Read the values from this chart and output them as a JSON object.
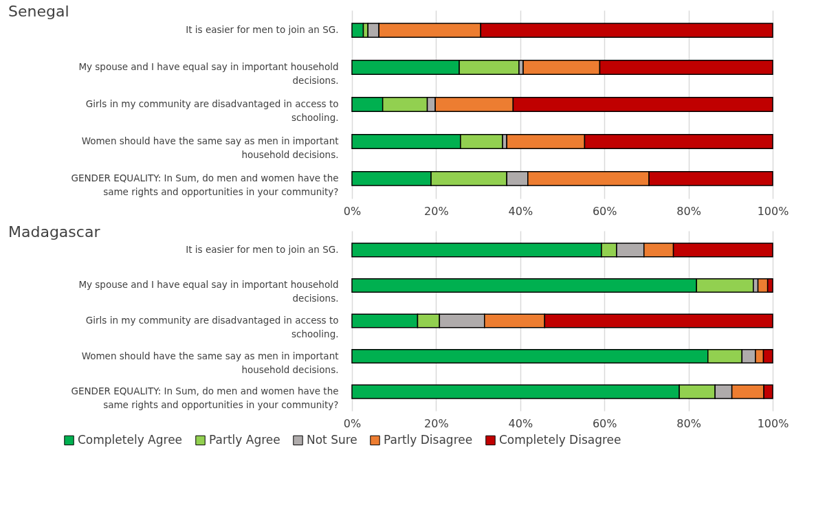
{
  "chart_data": [
    {
      "type": "bar",
      "title": "Senegal",
      "orientation": "horizontal",
      "stacked": true,
      "grid": "x",
      "legend": false,
      "categories": [
        "It is easier for men to join an SG.",
        "My spouse and I have equal say in important household decisions.",
        "Girls in my community are disadvantaged in access to schooling.",
        "Women should have the same say as men in important household decisions.",
        "GENDER EQUALITY: In Sum, do men and women have the same rights and opportunities in your community?"
      ],
      "xlim": [
        0,
        100
      ],
      "xticks": [
        {
          "value": 0,
          "label": "0%"
        },
        {
          "value": 20,
          "label": "20%"
        },
        {
          "value": 40,
          "label": "40%"
        },
        {
          "value": 60,
          "label": "60%"
        },
        {
          "value": 80,
          "label": "80%"
        },
        {
          "value": 100,
          "label": "100%"
        }
      ],
      "series": [
        {
          "color": "#00b050",
          "values": [
            2.7,
            25.5,
            7.3,
            25.8,
            18.8
          ]
        },
        {
          "color": "#92d050",
          "values": [
            1.1,
            14.2,
            10.6,
            10.0,
            18.0
          ]
        },
        {
          "color": "#afabab",
          "values": [
            2.6,
            1.0,
            1.9,
            1.0,
            5.0
          ]
        },
        {
          "color": "#ed7d31",
          "values": [
            24.2,
            18.2,
            18.5,
            18.5,
            28.8
          ]
        },
        {
          "color": "#c00000",
          "values": [
            69.4,
            41.1,
            61.7,
            44.7,
            29.4
          ]
        }
      ]
    },
    {
      "type": "bar",
      "title": "Madagascar",
      "orientation": "horizontal",
      "stacked": true,
      "grid": "x",
      "legend": "bottom",
      "categories": [
        "It is easier for men to join an SG.",
        "My spouse and I have equal say in important household decisions.",
        "Girls in my community are disadvantaged in access to schooling.",
        "Women should have the same say as men in important household decisions.",
        "GENDER EQUALITY: In Sum, do men and women have the same rights and opportunities in your community?"
      ],
      "xlim": [
        0,
        100
      ],
      "xticks": [
        {
          "value": 0,
          "label": "0%"
        },
        {
          "value": 20,
          "label": "20%"
        },
        {
          "value": 40,
          "label": "40%"
        },
        {
          "value": 60,
          "label": "60%"
        },
        {
          "value": 80,
          "label": "80%"
        },
        {
          "value": 100,
          "label": "100%"
        }
      ],
      "series": [
        {
          "name": "Completely Agree",
          "color": "#00b050",
          "values": [
            59.3,
            81.9,
            15.6,
            84.6,
            77.8
          ]
        },
        {
          "name": "Partly Agree",
          "color": "#92d050",
          "values": [
            3.6,
            13.5,
            5.2,
            8.1,
            8.5
          ]
        },
        {
          "name": "Not Sure",
          "color": "#afabab",
          "values": [
            6.5,
            1.1,
            10.7,
            3.2,
            4.0
          ]
        },
        {
          "name": "Partly Disagree",
          "color": "#ed7d31",
          "values": [
            7.0,
            2.3,
            14.3,
            1.9,
            7.6
          ]
        },
        {
          "name": "Completely Disagree",
          "color": "#c00000",
          "values": [
            23.6,
            1.2,
            54.2,
            2.2,
            2.1
          ]
        }
      ]
    }
  ]
}
